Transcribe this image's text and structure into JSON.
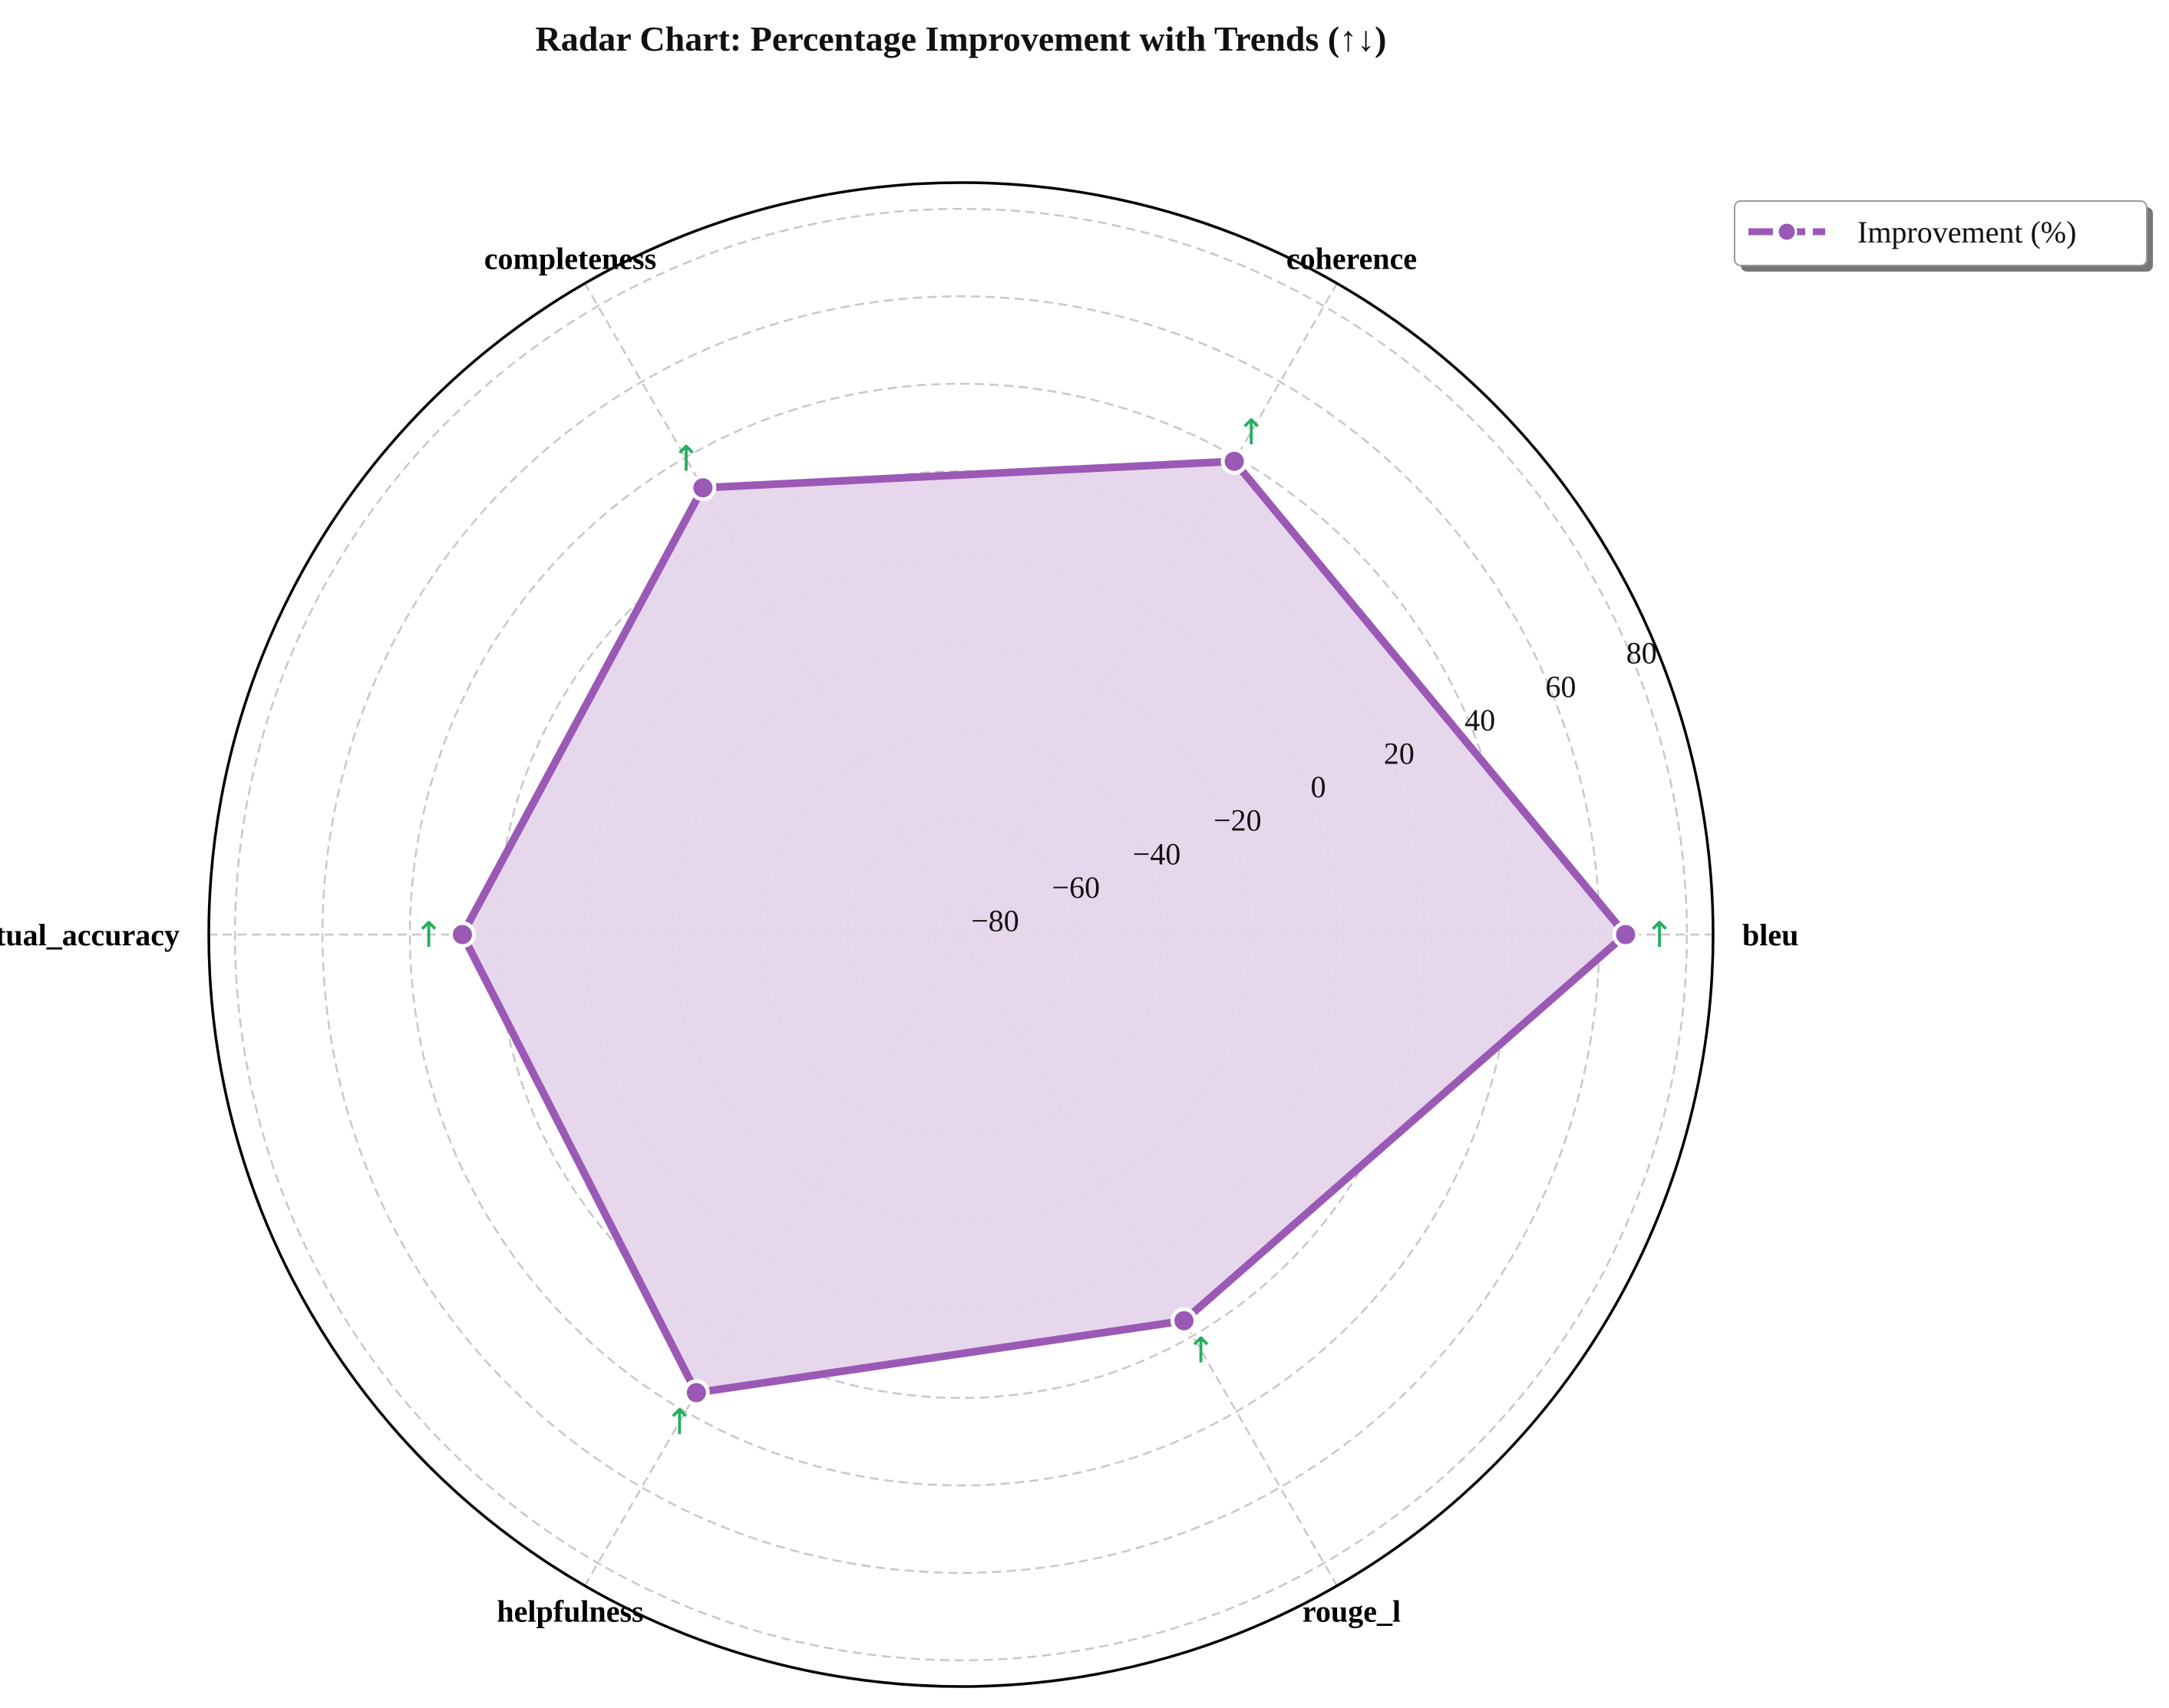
{
  "chart_data": {
    "type": "radar",
    "title": "Radar Chart: Percentage Improvement with Trends (↑↓)",
    "categories": [
      "bleu",
      "coherence",
      "completeness",
      "factual_accuracy",
      "helpfulness",
      "rouge_l"
    ],
    "series": [
      {
        "name": "Improvement (%)",
        "values": [
          66,
          39,
          32,
          28,
          35,
          16
        ],
        "color": "#9b59b6",
        "fill_color": "#e6d5ec",
        "trends": [
          "↑",
          "↑",
          "↑",
          "↑",
          "↑",
          "↑"
        ]
      }
    ],
    "rlim": [
      -86,
      86
    ],
    "rticks": [
      -80,
      -60,
      -40,
      -20,
      0,
      20,
      40,
      60,
      80
    ],
    "rtick_labels": [
      "−80",
      "−60",
      "−40",
      "−20",
      "0",
      "20",
      "40",
      "60",
      "80"
    ],
    "grid": true,
    "trend_color": "#27ae60",
    "legend_position": "upper-right-outside"
  }
}
